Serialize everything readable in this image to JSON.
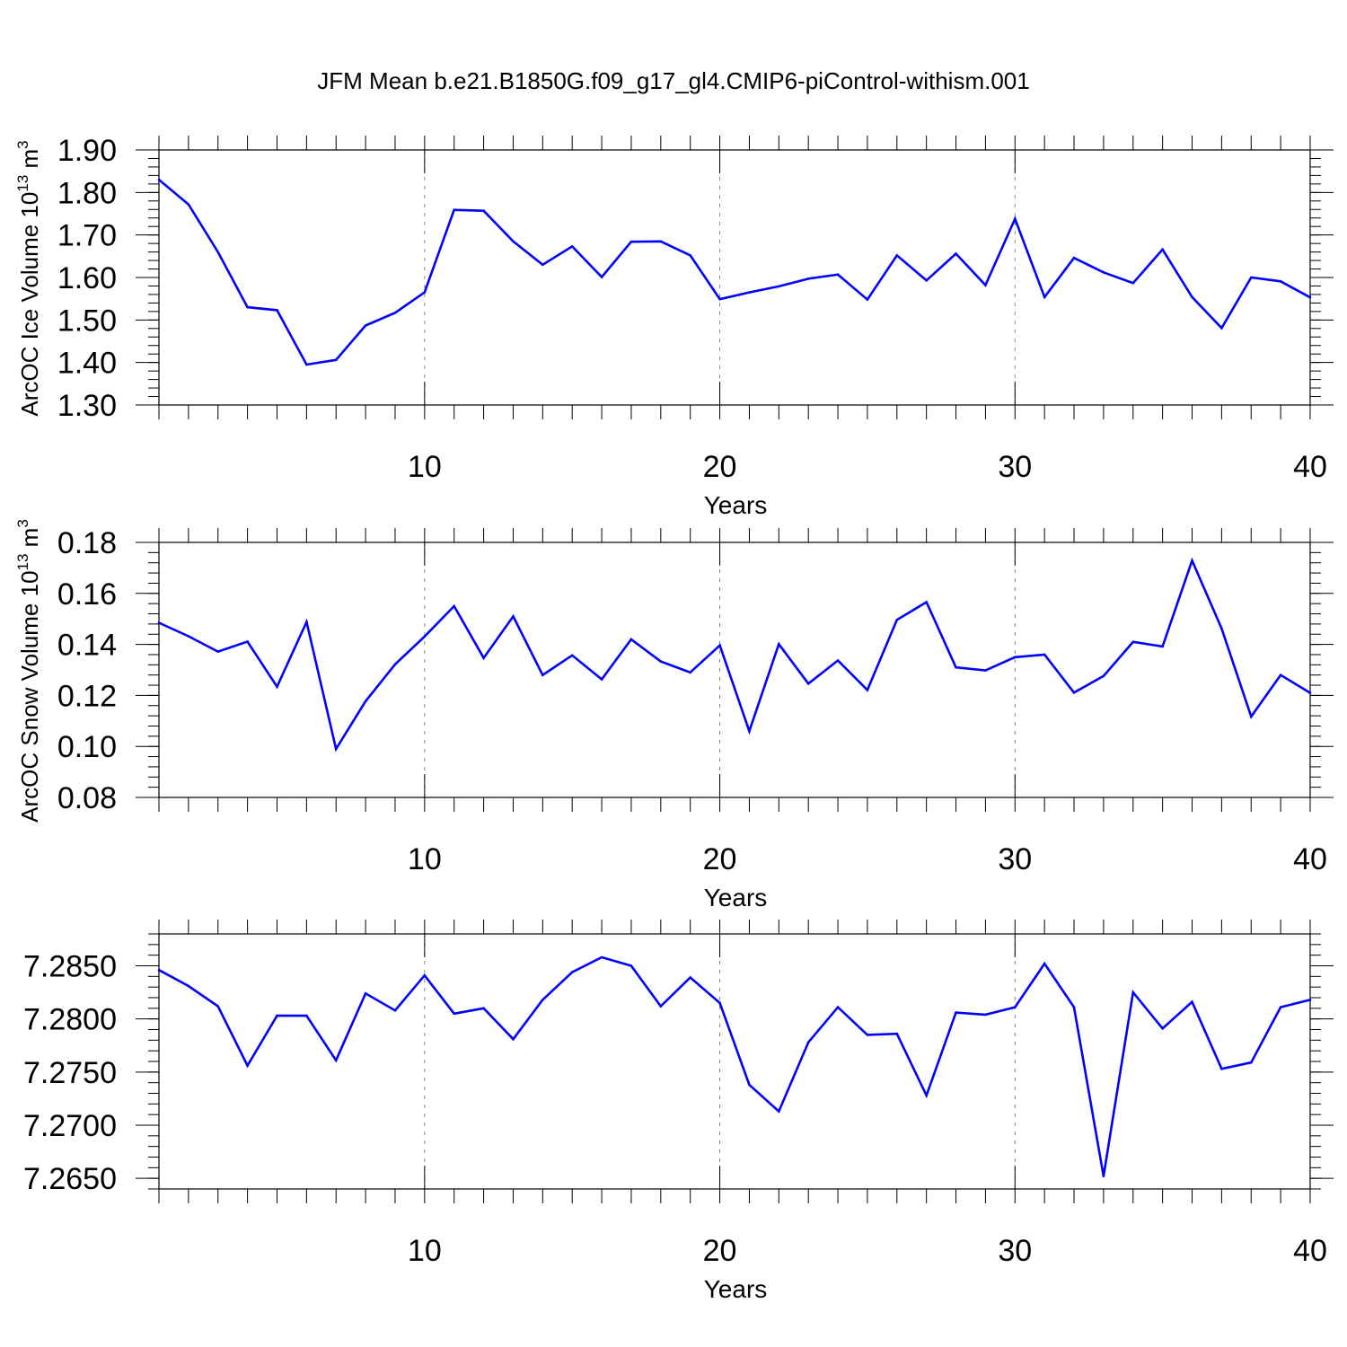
{
  "figure": {
    "title": "JFM Mean b.e21.B1850G.f09_g17_gl4.CMIP6-piControl-withism.001"
  },
  "colors": {
    "series": "#0000ff",
    "axis": "#000000",
    "grid": "#888888"
  },
  "chart_data": [
    {
      "type": "line",
      "title": "",
      "xlabel": "Years",
      "ylabel": "ArcOC Ice Volume 10",
      "ylabel_exp": "13",
      "ylabel_unit": " m",
      "ylabel_unit_exp": "3",
      "xlim": [
        1,
        40
      ],
      "ylim": [
        1.3,
        1.9
      ],
      "xticks": [
        10,
        20,
        30,
        40
      ],
      "xtick_labels": [
        "10",
        "20",
        "30",
        "40"
      ],
      "yticks": [
        1.3,
        1.4,
        1.5,
        1.6,
        1.7,
        1.8,
        1.9
      ],
      "ytick_labels": [
        "1.30",
        "1.40",
        "1.50",
        "1.60",
        "1.70",
        "1.80",
        "1.90"
      ],
      "grid_x": [
        10,
        20,
        30
      ],
      "x": [
        1,
        2,
        3,
        4,
        5,
        6,
        7,
        8,
        9,
        10,
        11,
        12,
        13,
        14,
        15,
        16,
        17,
        18,
        19,
        20,
        21,
        22,
        23,
        24,
        25,
        26,
        27,
        28,
        29,
        30,
        31,
        32,
        33,
        34,
        35,
        36,
        37,
        38,
        39,
        40
      ],
      "values": [
        1.83,
        1.772,
        1.66,
        1.53,
        1.523,
        1.395,
        1.406,
        1.487,
        1.517,
        1.565,
        1.759,
        1.757,
        1.685,
        1.63,
        1.673,
        1.601,
        1.684,
        1.685,
        1.652,
        1.549,
        1.565,
        1.579,
        1.597,
        1.607,
        1.548,
        1.652,
        1.593,
        1.656,
        1.582,
        1.738,
        1.554,
        1.646,
        1.612,
        1.587,
        1.666,
        1.554,
        1.481,
        1.6,
        1.591,
        1.553
      ]
    },
    {
      "type": "line",
      "title": "",
      "xlabel": "Years",
      "ylabel": "ArcOC Snow Volume 10",
      "ylabel_exp": "13",
      "ylabel_unit": " m",
      "ylabel_unit_exp": "3",
      "xlim": [
        1,
        40
      ],
      "ylim": [
        0.08,
        0.18
      ],
      "xticks": [
        10,
        20,
        30,
        40
      ],
      "xtick_labels": [
        "10",
        "20",
        "30",
        "40"
      ],
      "yticks": [
        0.08,
        0.1,
        0.12,
        0.14,
        0.16,
        0.18
      ],
      "ytick_labels": [
        "0.08",
        "0.10",
        "0.12",
        "0.14",
        "0.16",
        "0.18"
      ],
      "grid_x": [
        10,
        20,
        30
      ],
      "x": [
        1,
        2,
        3,
        4,
        5,
        6,
        7,
        8,
        9,
        10,
        11,
        12,
        13,
        14,
        15,
        16,
        17,
        18,
        19,
        20,
        21,
        22,
        23,
        24,
        25,
        26,
        27,
        28,
        29,
        30,
        31,
        32,
        33,
        34,
        35,
        36,
        37,
        38,
        39,
        40
      ],
      "values": [
        0.1485,
        0.1432,
        0.1372,
        0.1411,
        0.1234,
        0.1488,
        0.099,
        0.1177,
        0.1322,
        0.1431,
        0.155,
        0.1347,
        0.151,
        0.128,
        0.1357,
        0.1263,
        0.142,
        0.1333,
        0.129,
        0.1396,
        0.106,
        0.1401,
        0.1246,
        0.1337,
        0.1221,
        0.1496,
        0.1566,
        0.131,
        0.1298,
        0.135,
        0.136,
        0.1211,
        0.1276,
        0.141,
        0.1392,
        0.1729,
        0.1462,
        0.1117,
        0.128,
        0.121
      ]
    },
    {
      "type": "line",
      "title": "",
      "xlabel": "Years",
      "ylabel": "",
      "xlim": [
        1,
        40
      ],
      "ylim": [
        7.264,
        7.288
      ],
      "xticks": [
        10,
        20,
        30,
        40
      ],
      "xtick_labels": [
        "10",
        "20",
        "30",
        "40"
      ],
      "yticks": [
        7.265,
        7.27,
        7.275,
        7.28,
        7.285
      ],
      "ytick_labels": [
        "7.2650",
        "7.2700",
        "7.2750",
        "7.2800",
        "7.2850"
      ],
      "grid_x": [
        10,
        20,
        30
      ],
      "x": [
        1,
        2,
        3,
        4,
        5,
        6,
        7,
        8,
        9,
        10,
        11,
        12,
        13,
        14,
        15,
        16,
        17,
        18,
        19,
        20,
        21,
        22,
        23,
        24,
        25,
        26,
        27,
        28,
        29,
        30,
        31,
        32,
        33,
        34,
        35,
        36,
        37,
        38,
        39,
        40
      ],
      "values": [
        7.2846,
        7.2831,
        7.2812,
        7.2756,
        7.2803,
        7.2803,
        7.2761,
        7.2824,
        7.2808,
        7.2841,
        7.2805,
        7.281,
        7.2781,
        7.2818,
        7.2844,
        7.2858,
        7.285,
        7.2812,
        7.2839,
        7.2815,
        7.2738,
        7.2713,
        7.2778,
        7.2811,
        7.2785,
        7.2786,
        7.2728,
        7.2806,
        7.2804,
        7.2811,
        7.2852,
        7.2811,
        7.2652,
        7.2825,
        7.2791,
        7.2816,
        7.2753,
        7.2759,
        7.2811,
        7.2818
      ]
    }
  ]
}
